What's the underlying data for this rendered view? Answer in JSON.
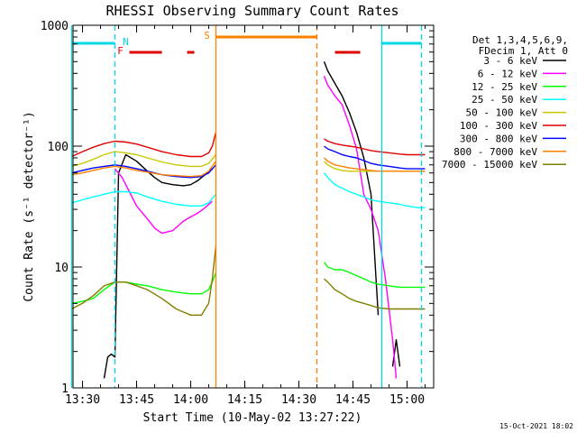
{
  "chart_data": {
    "type": "line",
    "title": "RHESSI Observing Summary Count Rates",
    "xlabel": "Start Time (10-May-02 13:27:22)",
    "ylabel": "Count Rate (s⁻¹ detector⁻¹)",
    "y_scale": "log",
    "ylim": [
      1,
      1000
    ],
    "xlim": [
      "13:27:22",
      "15:07:22"
    ],
    "x_tick_labels": [
      "13:30",
      "13:45",
      "14:00",
      "14:15",
      "14:30",
      "14:45",
      "15:00"
    ],
    "y_tick_labels": [
      "1",
      "10",
      "100",
      "1000"
    ],
    "legend_position": "top-right",
    "legend_header": [
      "Det 1,3,4,5,6,9,",
      "FDecim 1, Att 0"
    ],
    "footer_date": "15-Oct-2021 18:02",
    "flags": [
      {
        "label": "N",
        "color": "#00d8e8",
        "segments": [
          [
            "13:27",
            "13:39"
          ],
          [
            "14:53",
            "15:04"
          ]
        ]
      },
      {
        "label": "F",
        "color": "#e00000",
        "segments": [
          [
            "13:43",
            "13:52"
          ],
          [
            "13:59",
            "14:01"
          ],
          [
            "14:40",
            "14:47"
          ]
        ]
      },
      {
        "label": "S",
        "color": "#ff8000",
        "segments": [
          [
            "14:07",
            "14:35"
          ]
        ]
      }
    ],
    "vlines": [
      {
        "time": "13:27",
        "color": "#00d8e8",
        "style": "solid"
      },
      {
        "time": "13:39",
        "color": "#00d8e8",
        "style": "dashed"
      },
      {
        "time": "14:07",
        "color": "#ff8000",
        "style": "solid"
      },
      {
        "time": "14:35",
        "color": "#ff8000",
        "style": "dashed"
      },
      {
        "time": "14:53",
        "color": "#00d8e8",
        "style": "solid"
      },
      {
        "time": "15:04",
        "color": "#00d8e8",
        "style": "dashed"
      }
    ],
    "series": [
      {
        "name": "3 - 6 keV",
        "color": "#000000",
        "segments": [
          {
            "x": [
              "13:36",
              "13:37",
              "13:38",
              "13:39",
              "13:40",
              "13:42",
              "13:45",
              "13:48",
              "13:50",
              "13:52",
              "13:55",
              "13:58",
              "14:00",
              "14:02",
              "14:04",
              "14:06"
            ],
            "y": [
              1.2,
              1.8,
              1.9,
              1.8,
              60,
              85,
              75,
              62,
              55,
              50,
              48,
              47,
              48,
              52,
              58,
              65
            ]
          },
          {
            "x": [
              "14:37",
              "14:38",
              "14:40",
              "14:42",
              "14:44",
              "14:46",
              "14:48",
              "14:50",
              "14:52"
            ],
            "y": [
              500,
              420,
              330,
              260,
              190,
              130,
              80,
              40,
              4
            ]
          },
          {
            "x": [
              "14:56",
              "14:57",
              "14:58"
            ],
            "y": [
              1.5,
              2.5,
              1.5
            ]
          }
        ]
      },
      {
        "name": "6 - 12 keV",
        "color": "#ff00ff",
        "segments": [
          {
            "x": [
              "13:39",
              "13:41",
              "13:43",
              "13:45",
              "13:48",
              "13:50",
              "13:52",
              "13:55",
              "13:58",
              "14:00",
              "14:02",
              "14:04",
              "14:06"
            ],
            "y": [
              65,
              55,
              42,
              32,
              25,
              21,
              19,
              20,
              24,
              26,
              28,
              31,
              35
            ]
          },
          {
            "x": [
              "14:37",
              "14:38",
              "14:40",
              "14:42",
              "14:44",
              "14:46",
              "14:48",
              "14:50",
              "14:52",
              "14:54",
              "14:56",
              "14:57"
            ],
            "y": [
              380,
              320,
              260,
              220,
              150,
              95,
              40,
              30,
              20,
              8,
              2.5,
              1.2
            ]
          }
        ]
      },
      {
        "name": "12 - 25 keV",
        "color": "#00ff00",
        "segments": [
          {
            "x": [
              "13:27",
              "13:30",
              "13:33",
              "13:36",
              "13:39",
              "13:42",
              "13:45",
              "13:48",
              "13:52",
              "13:56",
              "14:00",
              "14:03",
              "14:05",
              "14:06",
              "14:07"
            ],
            "y": [
              5,
              5.2,
              5.5,
              6.5,
              7.5,
              7.5,
              7.2,
              7,
              6.5,
              6.2,
              6,
              6,
              6.5,
              7.5,
              9
            ]
          },
          {
            "x": [
              "14:37",
              "14:38",
              "14:40",
              "14:42",
              "14:44",
              "14:46",
              "14:48",
              "14:50",
              "14:52",
              "14:55",
              "14:58",
              "15:00",
              "15:03",
              "15:05"
            ],
            "y": [
              11,
              10,
              9.5,
              9.5,
              9,
              8.5,
              8,
              7.5,
              7.2,
              7,
              6.8,
              6.8,
              6.8,
              6.8
            ]
          }
        ]
      },
      {
        "name": "25 - 50 keV",
        "color": "#00ffff",
        "segments": [
          {
            "x": [
              "13:27",
              "13:30",
              "13:33",
              "13:36",
              "13:39",
              "13:42",
              "13:45",
              "13:48",
              "13:52",
              "13:56",
              "14:00",
              "14:03",
              "14:05",
              "14:07"
            ],
            "y": [
              34,
              36,
              38,
              40,
              42,
              42,
              41,
              38,
              35,
              33,
              32,
              32,
              34,
              40
            ]
          },
          {
            "x": [
              "14:37",
              "14:38",
              "14:40",
              "14:42",
              "14:44",
              "14:46",
              "14:48",
              "14:50",
              "14:52",
              "14:55",
              "14:58",
              "15:00",
              "15:03",
              "15:05"
            ],
            "y": [
              60,
              55,
              48,
              45,
              42,
              40,
              38,
              36,
              35,
              34,
              33,
              32,
              31,
              31
            ]
          }
        ]
      },
      {
        "name": "50 - 100 keV",
        "color": "#c8c800",
        "segments": [
          {
            "x": [
              "13:27",
              "13:30",
              "13:33",
              "13:36",
              "13:39",
              "13:42",
              "13:45",
              "13:48",
              "13:52",
              "13:56",
              "14:00",
              "14:03",
              "14:05",
              "14:07"
            ],
            "y": [
              68,
              72,
              78,
              85,
              90,
              88,
              85,
              80,
              74,
              70,
              68,
              68,
              72,
              85
            ]
          },
          {
            "x": [
              "14:37",
              "14:38",
              "14:40",
              "14:42",
              "14:44",
              "14:46",
              "14:48",
              "14:50",
              "14:52",
              "14:55",
              "14:58",
              "15:00",
              "15:03",
              "15:05"
            ],
            "y": [
              75,
              70,
              65,
              63,
              62,
              62,
              62,
              62,
              62,
              62,
              62,
              62,
              62,
              62
            ]
          }
        ]
      },
      {
        "name": "100 - 300 keV",
        "color": "#e00000",
        "segments": [
          {
            "x": [
              "13:27",
              "13:30",
              "13:33",
              "13:36",
              "13:39",
              "13:42",
              "13:45",
              "13:48",
              "13:52",
              "13:56",
              "14:00",
              "14:03",
              "14:05",
              "14:06",
              "14:07"
            ],
            "y": [
              82,
              90,
              98,
              105,
              110,
              108,
              104,
              98,
              90,
              85,
              82,
              82,
              88,
              100,
              130
            ]
          },
          {
            "x": [
              "14:37",
              "14:38",
              "14:40",
              "14:42",
              "14:44",
              "14:46",
              "14:48",
              "14:50",
              "14:52",
              "14:55",
              "14:58",
              "15:00",
              "15:03",
              "15:05"
            ],
            "y": [
              115,
              110,
              105,
              102,
              100,
              98,
              95,
              92,
              90,
              88,
              86,
              85,
              85,
              85
            ]
          }
        ]
      },
      {
        "name": "300 - 800 keV",
        "color": "#0000ff",
        "segments": [
          {
            "x": [
              "13:27",
              "13:30",
              "13:33",
              "13:36",
              "13:39",
              "13:42",
              "13:45",
              "13:48",
              "13:52",
              "13:56",
              "14:00",
              "14:03",
              "14:05",
              "14:07"
            ],
            "y": [
              60,
              63,
              66,
              68,
              70,
              68,
              65,
              62,
              58,
              56,
              55,
              56,
              60,
              70
            ]
          },
          {
            "x": [
              "14:37",
              "14:38",
              "14:40",
              "14:42",
              "14:44",
              "14:46",
              "14:48",
              "14:50",
              "14:52",
              "14:55",
              "14:58",
              "15:00",
              "15:03",
              "15:05"
            ],
            "y": [
              100,
              95,
              90,
              85,
              82,
              80,
              76,
              72,
              70,
              68,
              66,
              65,
              65,
              65
            ]
          }
        ]
      },
      {
        "name": "800 - 7000 keV",
        "color": "#ff8000",
        "segments": [
          {
            "x": [
              "13:27",
              "13:30",
              "13:33",
              "13:36",
              "13:39",
              "13:42",
              "13:45",
              "13:48",
              "13:52",
              "13:56",
              "14:00",
              "14:03",
              "14:05",
              "14:07"
            ],
            "y": [
              58,
              60,
              63,
              66,
              68,
              66,
              63,
              61,
              58,
              57,
              56,
              57,
              62,
              75
            ]
          },
          {
            "x": [
              "14:37",
              "14:38",
              "14:40",
              "14:42",
              "14:44",
              "14:46",
              "14:48",
              "14:50",
              "14:52",
              "14:55",
              "14:58",
              "15:00",
              "15:03",
              "15:05"
            ],
            "y": [
              80,
              75,
              70,
              68,
              66,
              65,
              64,
              63,
              62,
              62,
              62,
              62,
              62,
              62
            ]
          }
        ]
      },
      {
        "name": "7000 - 15000 keV",
        "color": "#808000",
        "segments": [
          {
            "x": [
              "13:27",
              "13:30",
              "13:33",
              "13:36",
              "13:39",
              "13:42",
              "13:45",
              "13:48",
              "13:52",
              "13:56",
              "14:00",
              "14:03",
              "14:05",
              "14:06",
              "14:07"
            ],
            "y": [
              4.5,
              5,
              5.8,
              7,
              7.5,
              7.5,
              7,
              6.5,
              5.5,
              4.5,
              4,
              4,
              5,
              8,
              15
            ]
          },
          {
            "x": [
              "14:37",
              "14:38",
              "14:40",
              "14:42",
              "14:44",
              "14:46",
              "14:48",
              "14:50",
              "14:52",
              "14:55",
              "14:58",
              "15:00",
              "15:03",
              "15:05"
            ],
            "y": [
              8,
              7.5,
              6.5,
              6,
              5.5,
              5.2,
              5,
              4.8,
              4.6,
              4.5,
              4.5,
              4.5,
              4.5,
              4.5
            ]
          }
        ]
      }
    ]
  }
}
